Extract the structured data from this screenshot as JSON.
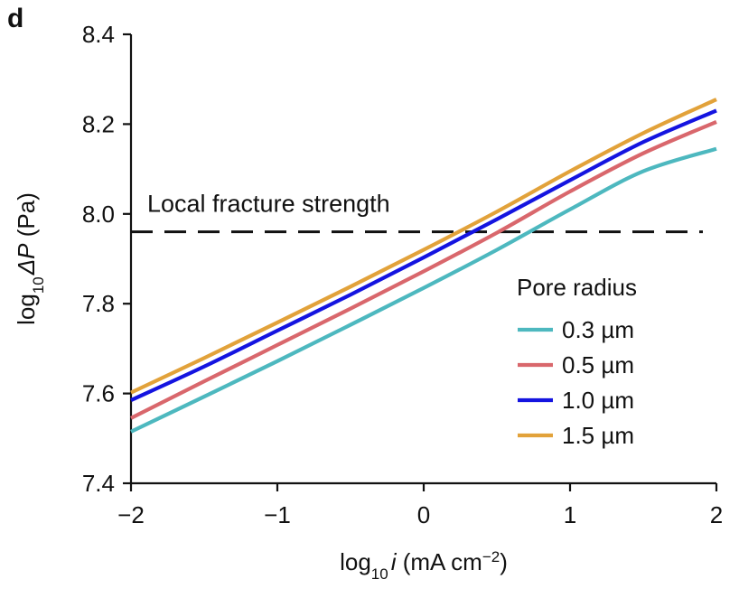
{
  "panel_label": "d",
  "chart_data": {
    "type": "line",
    "xlabel": {
      "prefix": "log",
      "sub": "10",
      "var": "i",
      "unit_pre": " (mA cm",
      "sup": "−2",
      "unit_post": ")"
    },
    "ylabel": {
      "prefix": "log",
      "sub": "10",
      "var": "ΔP",
      "unit": " (Pa)"
    },
    "xlim": [
      -2,
      2
    ],
    "ylim": [
      7.4,
      8.4
    ],
    "xticks": [
      -2,
      -1,
      0,
      1,
      2
    ],
    "xtick_labels": [
      "−2",
      "−1",
      "0",
      "1",
      "2"
    ],
    "yticks": [
      7.4,
      7.6,
      7.8,
      8.0,
      8.2,
      8.4
    ],
    "ytick_labels": [
      "7.4",
      "7.6",
      "7.8",
      "8.0",
      "8.2",
      "8.4"
    ],
    "grid": false,
    "legend": {
      "title": "Pore radius",
      "position": "right"
    },
    "annotations": [
      {
        "type": "hline",
        "y": 7.96,
        "style": "dashed",
        "color": "#111111",
        "label": "Local fracture strength"
      }
    ],
    "x": [
      -2,
      -1.5,
      -1,
      -0.5,
      0,
      0.5,
      1,
      1.5,
      2
    ],
    "series": [
      {
        "name": "0.3 µm",
        "color": "#4db8bf",
        "values": [
          7.515,
          7.593,
          7.672,
          7.753,
          7.835,
          7.92,
          8.01,
          8.095,
          8.145
        ]
      },
      {
        "name": "0.5 µm",
        "color": "#d9676c",
        "values": [
          7.545,
          7.627,
          7.708,
          7.789,
          7.872,
          7.958,
          8.05,
          8.135,
          8.205
        ]
      },
      {
        "name": "1.0 µm",
        "color": "#1414e0",
        "values": [
          7.585,
          7.66,
          7.74,
          7.82,
          7.903,
          7.988,
          8.075,
          8.16,
          8.23
        ]
      },
      {
        "name": "1.5 µm",
        "color": "#e2a23a",
        "values": [
          7.602,
          7.679,
          7.758,
          7.838,
          7.92,
          8.005,
          8.095,
          8.18,
          8.255
        ]
      }
    ]
  }
}
